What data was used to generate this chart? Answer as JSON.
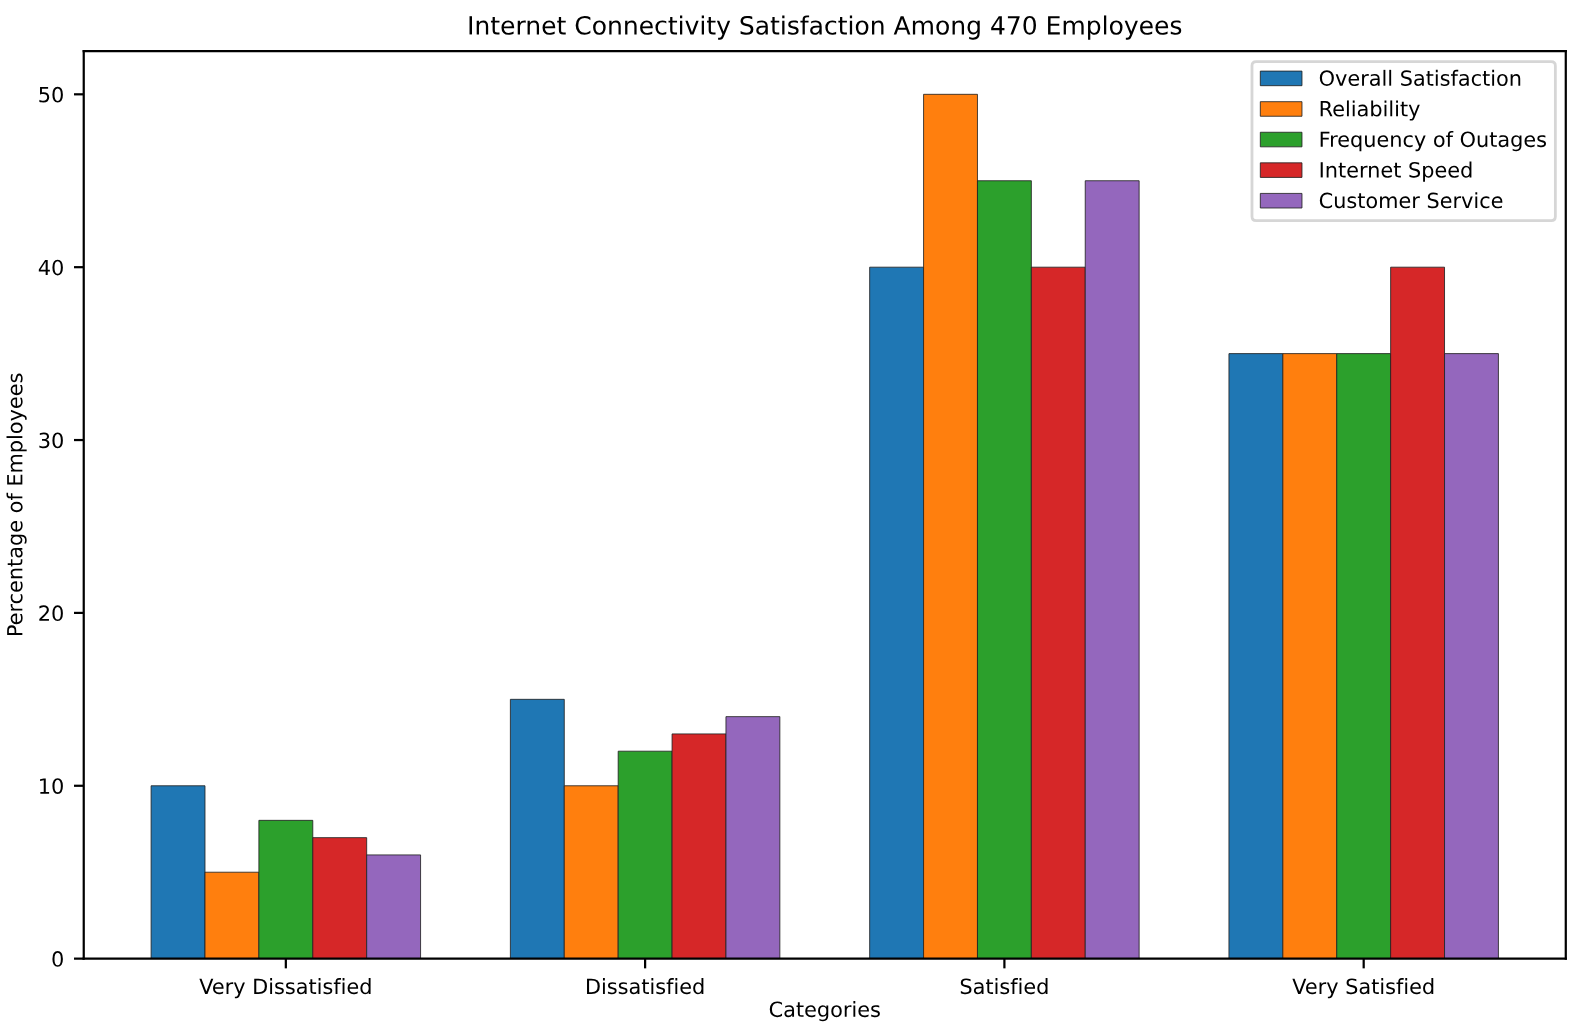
{
  "chart_data": {
    "type": "bar",
    "title": "Internet Connectivity Satisfaction Among 470 Employees",
    "xlabel": "Categories",
    "ylabel": "Percentage of Employees",
    "categories": [
      "Very Dissatisfied",
      "Dissatisfied",
      "Satisfied",
      "Very Satisfied"
    ],
    "series": [
      {
        "name": "Overall Satisfaction",
        "color": "#1f77b4",
        "values": [
          10,
          15,
          40,
          35
        ]
      },
      {
        "name": "Reliability",
        "color": "#ff7f0e",
        "values": [
          5,
          10,
          50,
          35
        ]
      },
      {
        "name": "Frequency of Outages",
        "color": "#2ca02c",
        "values": [
          8,
          12,
          45,
          35
        ]
      },
      {
        "name": "Internet Speed",
        "color": "#d62728",
        "values": [
          7,
          13,
          40,
          40
        ]
      },
      {
        "name": "Customer Service",
        "color": "#9467bd",
        "values": [
          6,
          14,
          45,
          35
        ]
      }
    ],
    "ylim": [
      0,
      52.5
    ],
    "yticks": [
      0,
      10,
      20,
      30,
      40,
      50
    ],
    "grid": false,
    "legend": "top right"
  }
}
